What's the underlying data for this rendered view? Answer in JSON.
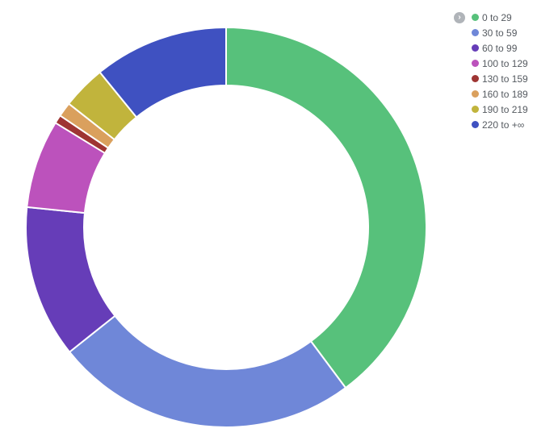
{
  "chart_data": {
    "type": "pie",
    "donut": true,
    "title": "",
    "categories": [
      "0 to 29",
      "30 to 59",
      "60 to 99",
      "100 to 129",
      "130 to 159",
      "160 to 189",
      "190 to 219",
      "220 to +∞"
    ],
    "values": [
      40.7,
      25.0,
      12.6,
      7.3,
      0.7,
      1.2,
      3.6,
      11.1
    ],
    "colors": [
      "#57c17b",
      "#6f87d8",
      "#663db8",
      "#bc52bc",
      "#9e3533",
      "#daa05d",
      "#c1b43c",
      "#3f51c1"
    ],
    "legend_position": "top-right",
    "start_angle": "12 o'clock",
    "direction": "clockwise"
  },
  "legend": {
    "toggle_icon": "chevron-right-icon",
    "toggle_glyph": "›"
  }
}
